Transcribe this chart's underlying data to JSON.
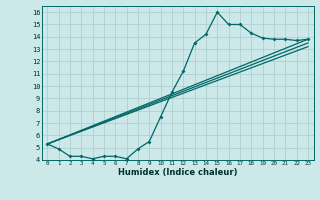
{
  "bg_color": "#cce8e8",
  "grid_color": "#b0d0d0",
  "line_color": "#006868",
  "xlabel": "Humidex (Indice chaleur)",
  "ylim": [
    4,
    16.5
  ],
  "xlim": [
    -0.5,
    23.5
  ],
  "yticks": [
    4,
    5,
    6,
    7,
    8,
    9,
    10,
    11,
    12,
    13,
    14,
    15,
    16
  ],
  "xticks": [
    0,
    1,
    2,
    3,
    4,
    5,
    6,
    7,
    8,
    9,
    10,
    11,
    12,
    13,
    14,
    15,
    16,
    17,
    18,
    19,
    20,
    21,
    22,
    23
  ],
  "line_main": {
    "x": [
      0,
      1,
      2,
      3,
      4,
      5,
      6,
      7,
      8,
      9,
      10,
      11,
      12,
      13,
      14,
      15,
      16,
      17,
      18,
      19,
      20,
      21,
      22,
      23
    ],
    "y": [
      5.3,
      4.9,
      4.3,
      4.3,
      4.1,
      4.3,
      4.3,
      4.1,
      4.9,
      5.5,
      7.5,
      9.5,
      11.2,
      13.5,
      14.2,
      16.0,
      15.0,
      15.0,
      14.3,
      13.9,
      13.8,
      13.8,
      13.7,
      13.8
    ]
  },
  "line_straight1": {
    "x": [
      0,
      23
    ],
    "y": [
      5.3,
      13.8
    ]
  },
  "line_straight2": {
    "x": [
      0,
      23
    ],
    "y": [
      5.3,
      13.5
    ]
  },
  "line_straight3": {
    "x": [
      0,
      23
    ],
    "y": [
      5.3,
      13.2
    ]
  }
}
